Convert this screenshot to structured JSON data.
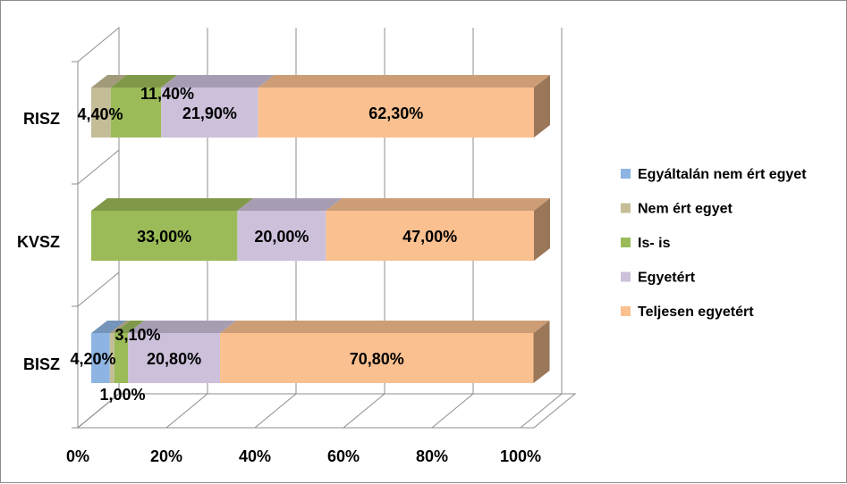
{
  "chart_data": {
    "type": "bar",
    "orientation": "horizontal",
    "stacked": "percent",
    "style": "3d",
    "categories": [
      "BISZ",
      "KVSZ",
      "RISZ"
    ],
    "series": [
      {
        "name": "Egyáltalán nem ért egyet",
        "values": [
          4.2,
          0,
          0
        ],
        "labels": [
          "4,20%",
          "",
          ""
        ],
        "color": "#8DB4E2"
      },
      {
        "name": "Nem ért egyet",
        "values": [
          1.0,
          0,
          4.4
        ],
        "labels": [
          "1,00%",
          "",
          "4,40%"
        ],
        "color": "#C4BD97"
      },
      {
        "name": "Is- is",
        "values": [
          3.1,
          33.0,
          11.4
        ],
        "labels": [
          "3,10%",
          "33,00%",
          "11,40%"
        ],
        "color": "#9BBB59"
      },
      {
        "name": "Egyetért",
        "values": [
          20.8,
          20.0,
          21.9
        ],
        "labels": [
          "20,80%",
          "20,00%",
          "21,90%"
        ],
        "color": "#CCC0DA"
      },
      {
        "name": "Teljesen egyetért",
        "values": [
          70.8,
          47.0,
          62.3
        ],
        "labels": [
          "70,80%",
          "47,00%",
          "62,30%"
        ],
        "color": "#FAC090"
      }
    ],
    "x_ticks": [
      "0%",
      "20%",
      "40%",
      "60%",
      "80%",
      "100%"
    ],
    "xlim": [
      0,
      100
    ],
    "grid": true,
    "legend": "right"
  }
}
